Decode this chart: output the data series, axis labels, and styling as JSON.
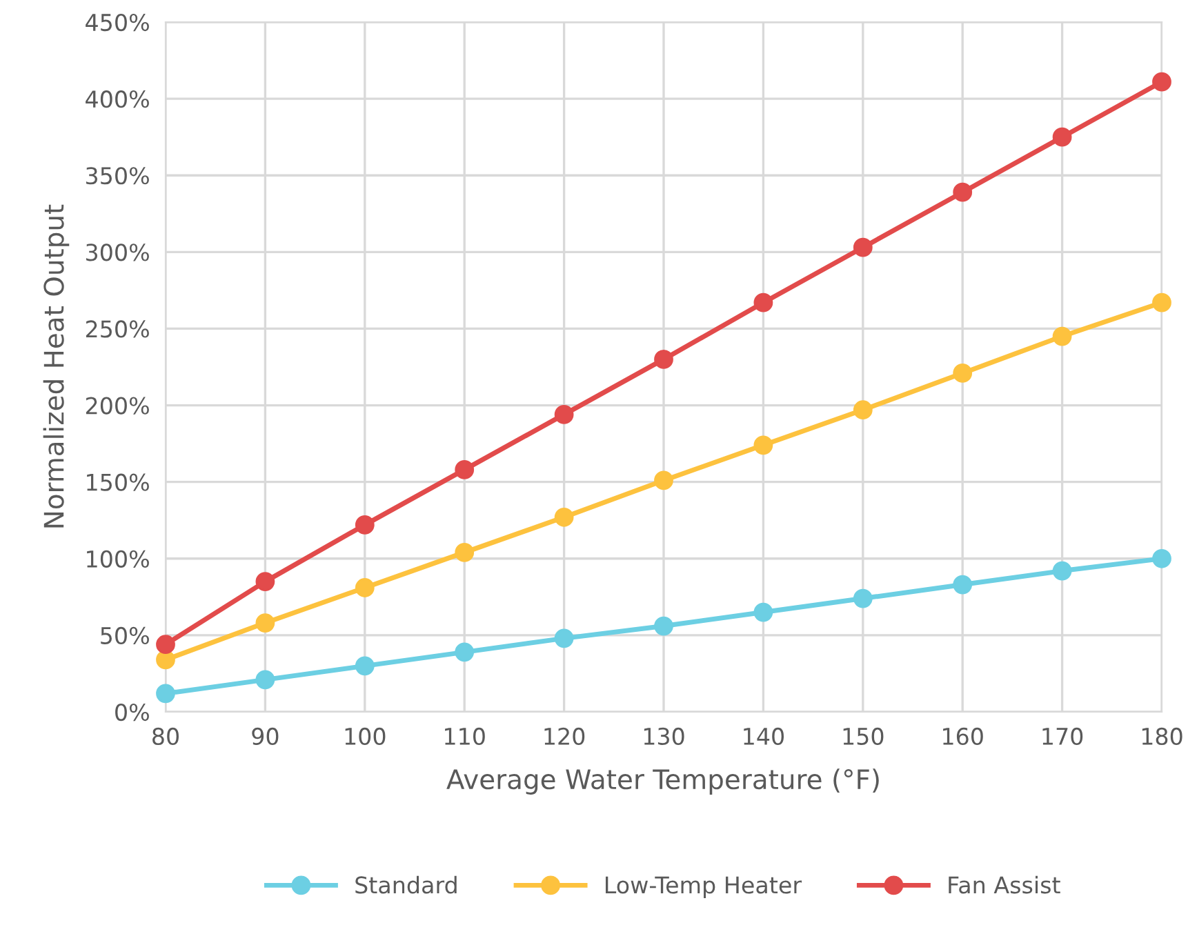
{
  "chart_data": {
    "type": "line",
    "xlabel": "Average Water Temperature (°F)",
    "ylabel": "Normalized Heat Output",
    "x": [
      80,
      90,
      100,
      110,
      120,
      130,
      140,
      150,
      160,
      170,
      180
    ],
    "series": [
      {
        "name": "Standard",
        "color": "#6ccfe3",
        "values": [
          12,
          21,
          30,
          39,
          48,
          56,
          65,
          74,
          83,
          92,
          100
        ]
      },
      {
        "name": "Low-Temp Heater",
        "color": "#fdc23e",
        "values": [
          34,
          58,
          81,
          104,
          127,
          151,
          174,
          197,
          221,
          245,
          267
        ]
      },
      {
        "name": "Fan Assist",
        "color": "#e24b4b",
        "values": [
          44,
          85,
          122,
          158,
          194,
          230,
          267,
          303,
          339,
          375,
          411
        ]
      }
    ],
    "xlim": [
      80,
      180
    ],
    "xticks": [
      80,
      90,
      100,
      110,
      120,
      130,
      140,
      150,
      160,
      170,
      180
    ],
    "ylim": [
      0,
      450
    ],
    "yticks": [
      {
        "value": 0,
        "label": "0%"
      },
      {
        "value": 50,
        "label": "50%"
      },
      {
        "value": 100,
        "label": "100%"
      },
      {
        "value": 150,
        "label": "150%"
      },
      {
        "value": 200,
        "label": "200%"
      },
      {
        "value": 250,
        "label": "250%"
      },
      {
        "value": 300,
        "label": "300%"
      },
      {
        "value": 350,
        "label": "350%"
      },
      {
        "value": 400,
        "label": "400%"
      },
      {
        "value": 450,
        "label": "450%"
      }
    ],
    "grid": true,
    "legend": "bottom",
    "marker": "circle",
    "line_style": "solid"
  }
}
